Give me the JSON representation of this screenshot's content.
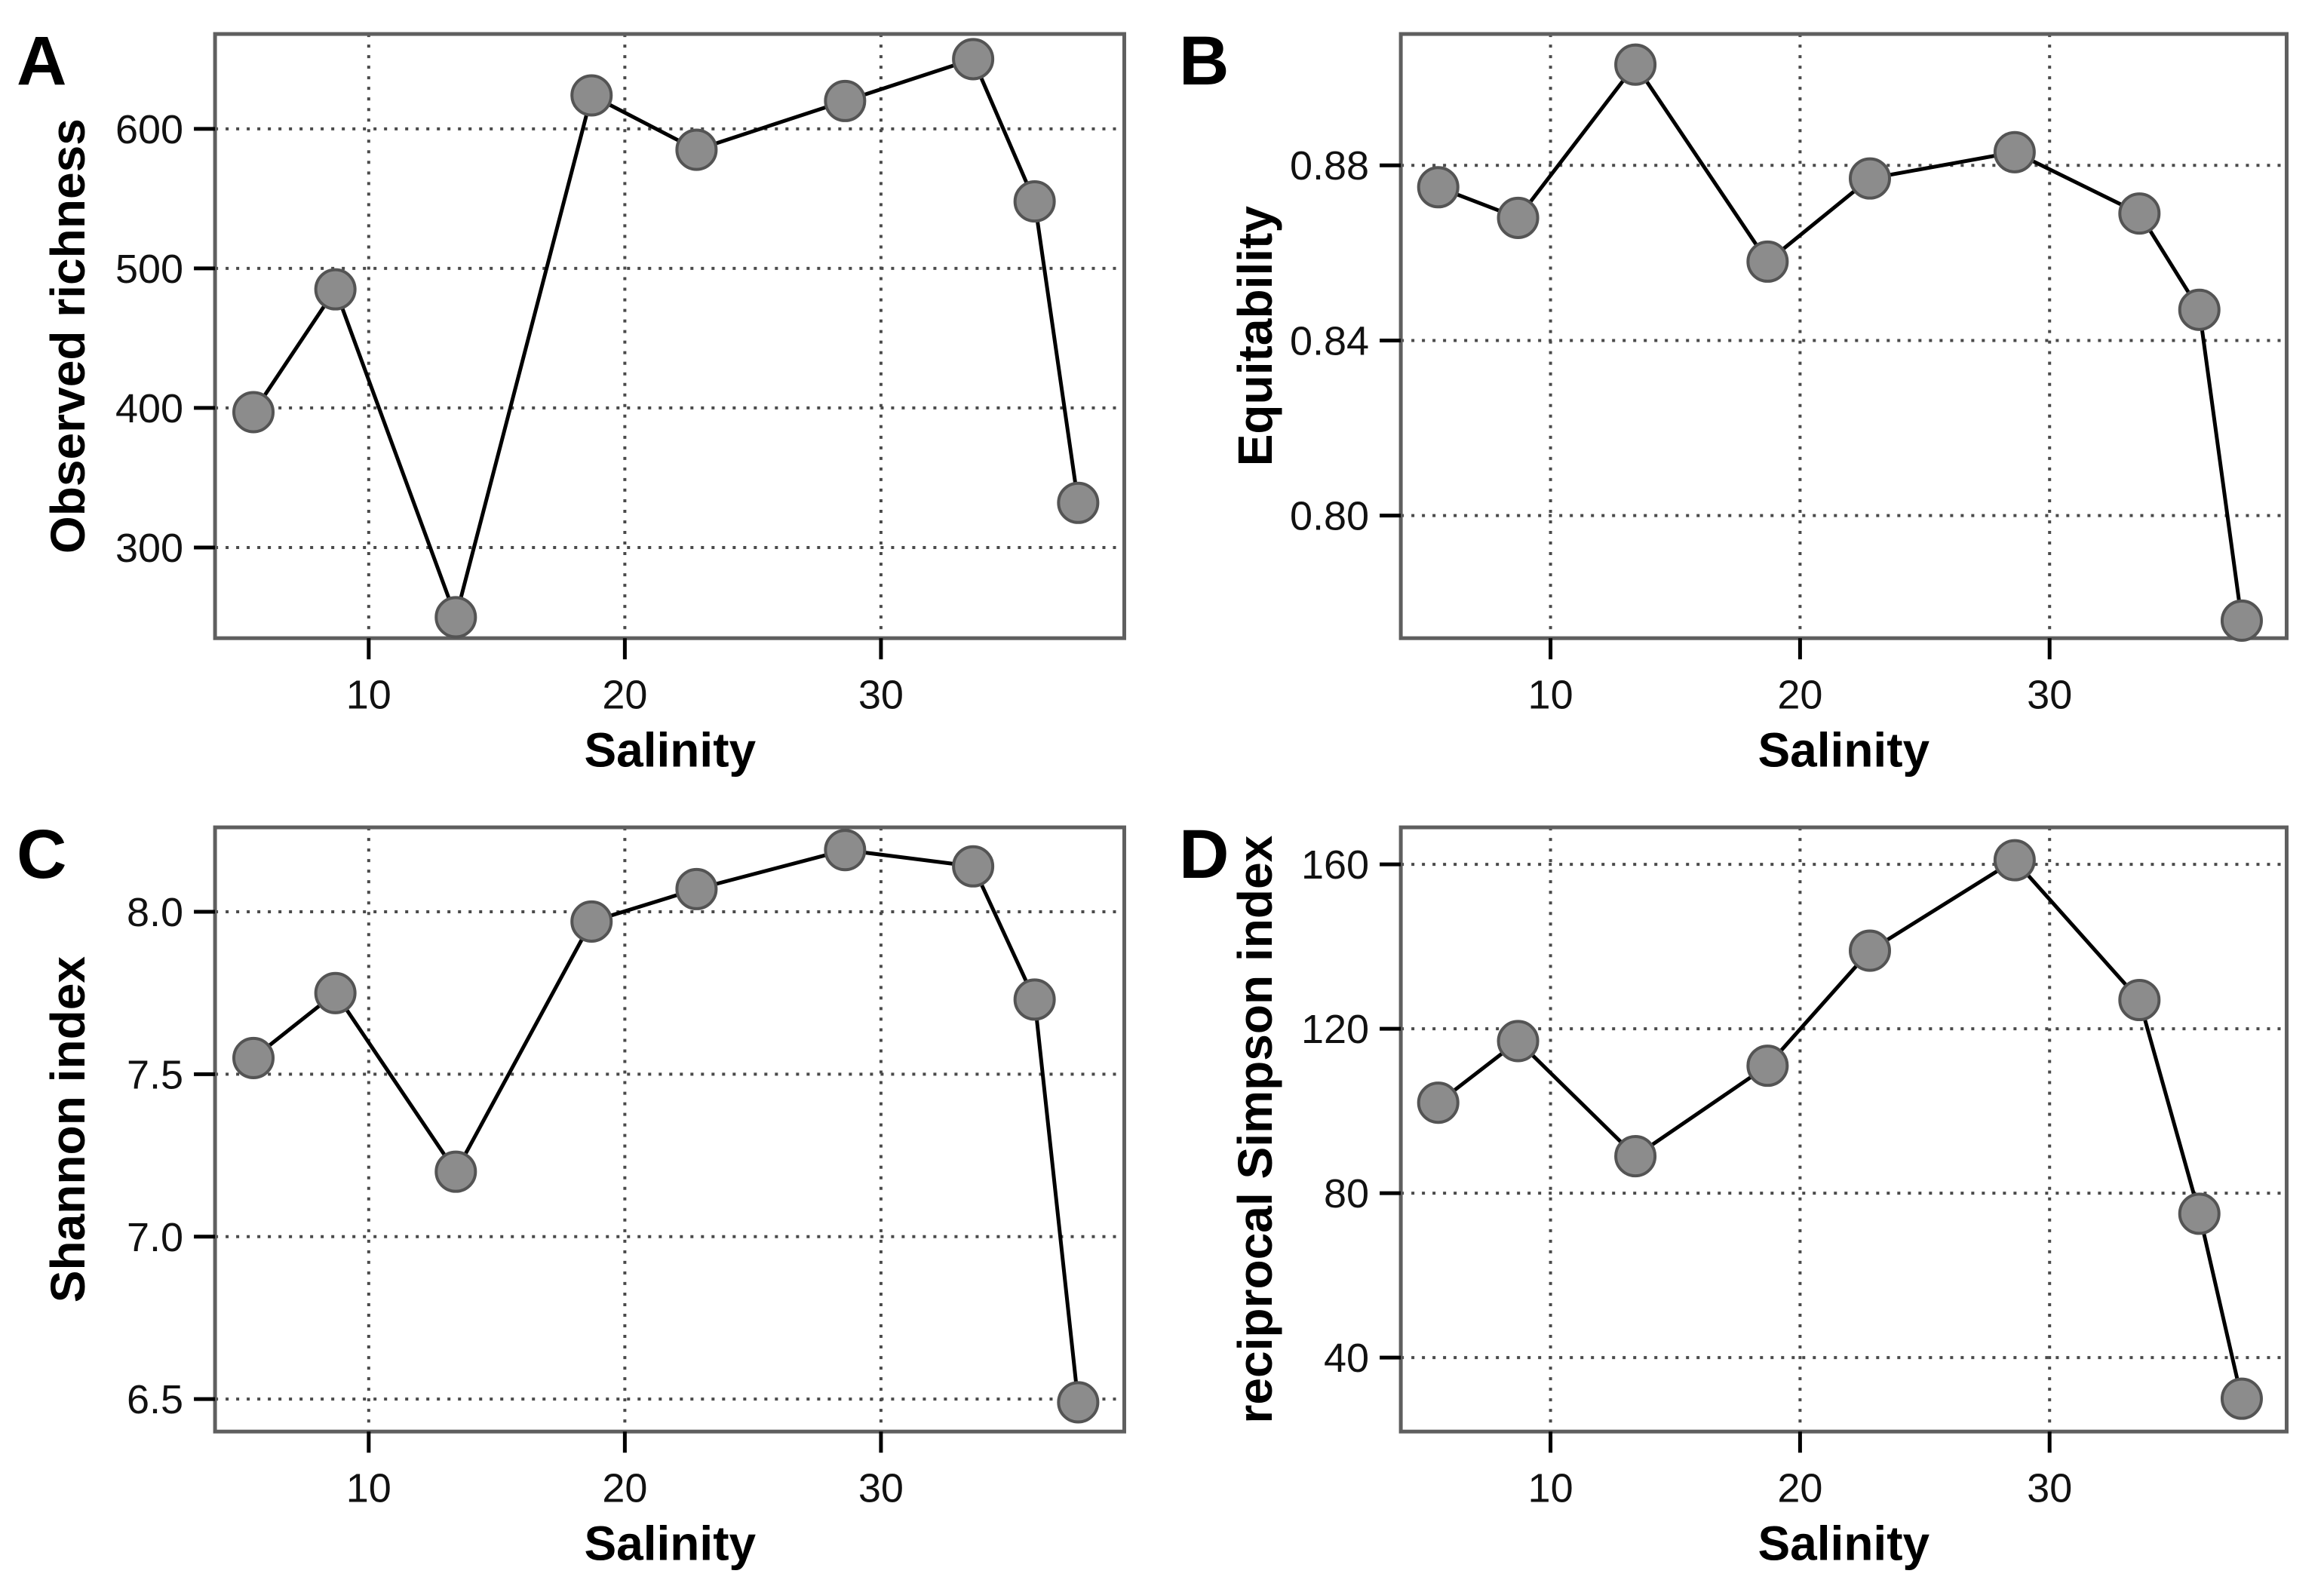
{
  "style": {
    "background": "#ffffff",
    "panel_border_color": "#5f5f5f",
    "grid_color": "#4a4a4a",
    "tick_color": "#000000",
    "text_color": "#111111",
    "line_color": "#000000",
    "marker_fill": "#8c8c8c",
    "marker_stroke": "#545454"
  },
  "chart_data": [
    {
      "panel": "A",
      "type": "line",
      "xlabel": "Salinity",
      "ylabel": "Observed richness",
      "x": [
        5.5,
        8.7,
        13.4,
        18.7,
        22.8,
        28.6,
        33.6,
        36.0,
        37.7
      ],
      "y": [
        397,
        485,
        250,
        624,
        585,
        620,
        650,
        548,
        332
      ],
      "xlim": [
        4.0,
        39.5
      ],
      "ylim": [
        235,
        668
      ],
      "xticks": [
        10,
        20,
        30
      ],
      "yticks": [
        300,
        400,
        500,
        600
      ],
      "xtick_labels": [
        "10",
        "20",
        "30"
      ],
      "ytick_labels": [
        "300",
        "400",
        "500",
        "600"
      ],
      "grid": "dotted",
      "legend": "none"
    },
    {
      "panel": "B",
      "type": "line",
      "xlabel": "Salinity",
      "ylabel": "Equitability",
      "x": [
        5.5,
        8.7,
        13.4,
        18.7,
        22.8,
        28.6,
        33.6,
        36.0,
        37.7
      ],
      "y": [
        0.875,
        0.868,
        0.903,
        0.858,
        0.877,
        0.883,
        0.869,
        0.847,
        0.776
      ],
      "xlim": [
        4.0,
        39.5
      ],
      "ylim": [
        0.772,
        0.91
      ],
      "xticks": [
        10,
        20,
        30
      ],
      "yticks": [
        0.8,
        0.84,
        0.88
      ],
      "xtick_labels": [
        "10",
        "20",
        "30"
      ],
      "ytick_labels": [
        "0.80",
        "0.84",
        "0.88"
      ],
      "grid": "dotted",
      "legend": "none"
    },
    {
      "panel": "C",
      "type": "line",
      "xlabel": "Salinity",
      "ylabel": "Shannon index",
      "x": [
        5.5,
        8.7,
        13.4,
        18.7,
        22.8,
        28.6,
        33.6,
        36.0,
        37.7
      ],
      "y": [
        7.55,
        7.75,
        7.2,
        7.97,
        8.07,
        8.19,
        8.14,
        7.73,
        6.49
      ],
      "xlim": [
        4.0,
        39.5
      ],
      "ylim": [
        6.4,
        8.26
      ],
      "xticks": [
        10,
        20,
        30
      ],
      "yticks": [
        6.5,
        7.0,
        7.5,
        8.0
      ],
      "xtick_labels": [
        "10",
        "20",
        "30"
      ],
      "ytick_labels": [
        "6.5",
        "7.0",
        "7.5",
        "8.0"
      ],
      "grid": "dotted",
      "legend": "none"
    },
    {
      "panel": "D",
      "type": "line",
      "xlabel": "Salinity",
      "ylabel": "reciprocal Simpson index",
      "x": [
        5.5,
        8.7,
        13.4,
        18.7,
        22.8,
        28.6,
        33.6,
        36.0,
        37.7
      ],
      "y": [
        102,
        117,
        89,
        111,
        139,
        161,
        127,
        75,
        30
      ],
      "xlim": [
        4.0,
        39.5
      ],
      "ylim": [
        22,
        169
      ],
      "xticks": [
        10,
        20,
        30
      ],
      "yticks": [
        40,
        80,
        120,
        160
      ],
      "xtick_labels": [
        "10",
        "20",
        "30"
      ],
      "ytick_labels": [
        "40",
        "80",
        "120",
        "160"
      ],
      "grid": "dotted",
      "legend": "none"
    }
  ]
}
